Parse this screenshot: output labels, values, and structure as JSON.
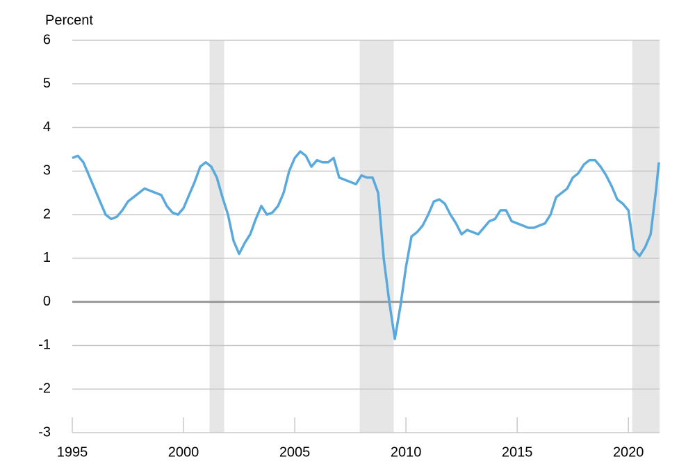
{
  "chart_data": {
    "type": "line",
    "y_label": "Percent",
    "xlim": [
      1995,
      2021.4
    ],
    "ylim": [
      -3,
      6
    ],
    "xticks": [
      1995,
      2000,
      2005,
      2010,
      2015,
      2020
    ],
    "yticks": [
      -3,
      -2,
      -1,
      0,
      1,
      2,
      3,
      4,
      5,
      6
    ],
    "grid": true,
    "recessions": [
      [
        2001.17,
        2001.83
      ],
      [
        2007.92,
        2009.45
      ],
      [
        2020.17,
        2021.4
      ]
    ],
    "x": [
      1995,
      1995.25,
      1995.5,
      1995.75,
      1996,
      1996.25,
      1996.5,
      1996.75,
      1997,
      1997.25,
      1997.5,
      1997.75,
      1998,
      1998.25,
      1998.5,
      1998.75,
      1999,
      1999.25,
      1999.5,
      1999.75,
      2000,
      2000.25,
      2000.5,
      2000.75,
      2001,
      2001.25,
      2001.5,
      2001.75,
      2002,
      2002.25,
      2002.5,
      2002.75,
      2003,
      2003.25,
      2003.5,
      2003.75,
      2004,
      2004.25,
      2004.5,
      2004.75,
      2005,
      2005.25,
      2005.5,
      2005.75,
      2006,
      2006.25,
      2006.5,
      2006.75,
      2007,
      2007.25,
      2007.5,
      2007.75,
      2008,
      2008.25,
      2008.5,
      2008.75,
      2009,
      2009.25,
      2009.5,
      2009.75,
      2010,
      2010.25,
      2010.5,
      2010.75,
      2011,
      2011.25,
      2011.5,
      2011.75,
      2012,
      2012.25,
      2012.5,
      2012.75,
      2013,
      2013.25,
      2013.5,
      2013.75,
      2014,
      2014.25,
      2014.5,
      2014.75,
      2015,
      2015.25,
      2015.5,
      2015.75,
      2016,
      2016.25,
      2016.5,
      2016.75,
      2017,
      2017.25,
      2017.5,
      2017.75,
      2018,
      2018.25,
      2018.5,
      2018.75,
      2019,
      2019.25,
      2019.5,
      2019.75,
      2020,
      2020.25,
      2020.5,
      2020.75,
      2021,
      2021.25,
      2021.37
    ],
    "series": [
      {
        "color": "#5aa9dd",
        "values": [
          3.3,
          3.35,
          3.2,
          2.9,
          2.6,
          2.3,
          2.0,
          1.9,
          1.95,
          2.1,
          2.3,
          2.4,
          2.5,
          2.6,
          2.55,
          2.5,
          2.45,
          2.2,
          2.05,
          2.0,
          2.15,
          2.45,
          2.75,
          3.1,
          3.2,
          3.1,
          2.85,
          2.4,
          2.0,
          1.4,
          1.1,
          1.35,
          1.55,
          1.9,
          2.2,
          2.0,
          2.05,
          2.2,
          2.5,
          3.0,
          3.3,
          3.45,
          3.35,
          3.1,
          3.25,
          3.2,
          3.2,
          3.3,
          2.85,
          2.8,
          2.75,
          2.7,
          2.9,
          2.85,
          2.85,
          2.5,
          1.0,
          0.0,
          -0.85,
          -0.1,
          0.8,
          1.5,
          1.6,
          1.75,
          2.0,
          2.3,
          2.35,
          2.25,
          2.0,
          1.8,
          1.55,
          1.65,
          1.6,
          1.55,
          1.7,
          1.85,
          1.9,
          2.1,
          2.1,
          1.85,
          1.8,
          1.75,
          1.7,
          1.7,
          1.75,
          1.8,
          2.0,
          2.4,
          2.5,
          2.6,
          2.85,
          2.95,
          3.15,
          3.25,
          3.25,
          3.1,
          2.9,
          2.65,
          2.35,
          2.25,
          2.1,
          1.2,
          1.05,
          1.25,
          1.55,
          2.6,
          3.2
        ]
      }
    ]
  }
}
